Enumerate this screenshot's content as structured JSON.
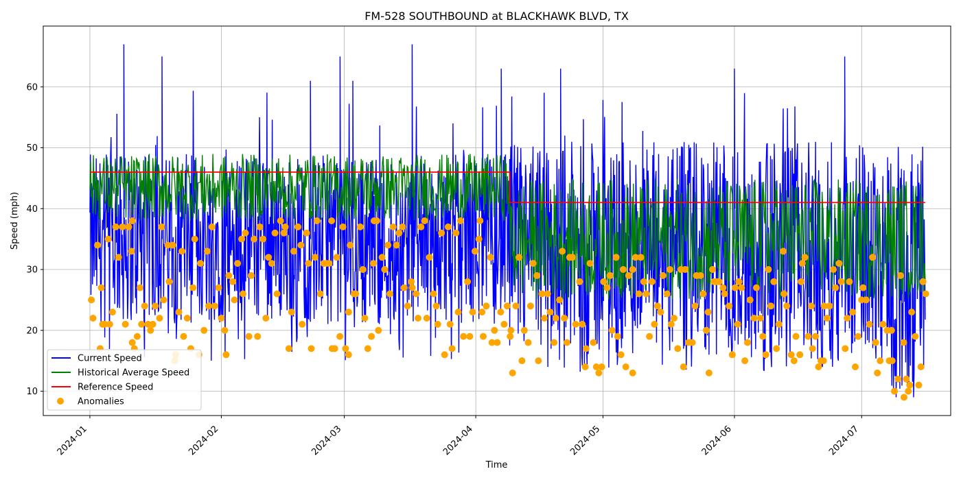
{
  "chart_data": {
    "type": "line",
    "title": "FM-528 SOUTHBOUND at BLACKHAWK BLVD, TX",
    "xlabel": "Time",
    "ylabel": "Speed (mph)",
    "x_range": [
      "2023-12-21",
      "2024-07-22"
    ],
    "ylim": [
      6,
      70
    ],
    "x_ticks": [
      "2024-01",
      "2024-02",
      "2024-03",
      "2024-04",
      "2024-05",
      "2024-06",
      "2024-07"
    ],
    "y_ticks": [
      10,
      20,
      30,
      40,
      50,
      60
    ],
    "grid": true,
    "legend_position": "lower-left",
    "series": [
      {
        "name": "Current Speed",
        "color": "#0000ff",
        "kind": "line",
        "profile": [
          {
            "from": "2024-01-01",
            "to": "2024-04-09",
            "typical_range": [
              21,
              49
            ],
            "peak": 67,
            "min": 15
          },
          {
            "from": "2024-04-09",
            "to": "2024-07-08",
            "typical_range": [
              15,
              51
            ],
            "peak": 65,
            "min": 13
          },
          {
            "from": "2024-07-08",
            "to": "2024-07-16",
            "typical_range": [
              9,
              49
            ],
            "peak": 51,
            "min": 9
          }
        ],
        "notable_peaks": [
          {
            "x": "2024-01-09",
            "y": 67
          },
          {
            "x": "2024-01-18",
            "y": 65
          },
          {
            "x": "2024-02-22",
            "y": 61
          },
          {
            "x": "2024-02-29",
            "y": 65
          },
          {
            "x": "2024-03-03",
            "y": 61
          },
          {
            "x": "2024-03-17",
            "y": 67
          },
          {
            "x": "2024-04-07",
            "y": 63
          },
          {
            "x": "2024-04-21",
            "y": 63
          },
          {
            "x": "2024-06-01",
            "y": 63
          },
          {
            "x": "2024-06-27",
            "y": 65
          }
        ]
      },
      {
        "name": "Historical Average Speed",
        "color": "#008000",
        "kind": "line",
        "profile": [
          {
            "from": "2024-01-01",
            "to": "2024-04-09",
            "typical_range": [
              38,
              49
            ]
          },
          {
            "from": "2024-04-09",
            "to": "2024-07-16",
            "typical_range": [
              25,
              45
            ]
          }
        ]
      },
      {
        "name": "Reference Speed",
        "color": "#ff0000",
        "kind": "step",
        "points": [
          {
            "x": "2024-01-01",
            "y": 46
          },
          {
            "x": "2024-04-09",
            "y": 46
          },
          {
            "x": "2024-04-09",
            "y": 41
          },
          {
            "x": "2024-07-16",
            "y": 41
          }
        ]
      },
      {
        "name": "Anomalies",
        "color": "#ffa500",
        "kind": "scatter",
        "profile": [
          {
            "from": "2024-01-01",
            "to": "2024-04-09",
            "typical_range": [
              16,
              38
            ]
          },
          {
            "from": "2024-04-09",
            "to": "2024-07-08",
            "typical_range": [
              13,
              33
            ]
          },
          {
            "from": "2024-07-08",
            "to": "2024-07-16",
            "typical_range": [
              9,
              31
            ]
          }
        ],
        "outliers": [
          {
            "x": "2024-01-04",
            "y": 21
          },
          {
            "x": "2024-01-11",
            "y": 18
          },
          {
            "x": "2024-01-11",
            "y": 38
          },
          {
            "x": "2024-01-21",
            "y": 15
          },
          {
            "x": "2024-02-27",
            "y": 38
          },
          {
            "x": "2024-03-02",
            "y": 16
          },
          {
            "x": "2024-03-08",
            "y": 38
          },
          {
            "x": "2024-04-02",
            "y": 38
          },
          {
            "x": "2024-05-08",
            "y": 13
          },
          {
            "x": "2024-05-26",
            "y": 13
          },
          {
            "x": "2024-06-17",
            "y": 31
          },
          {
            "x": "2024-06-22",
            "y": 15
          },
          {
            "x": "2024-07-11",
            "y": 9
          },
          {
            "x": "2024-07-12",
            "y": 10
          }
        ]
      }
    ]
  }
}
